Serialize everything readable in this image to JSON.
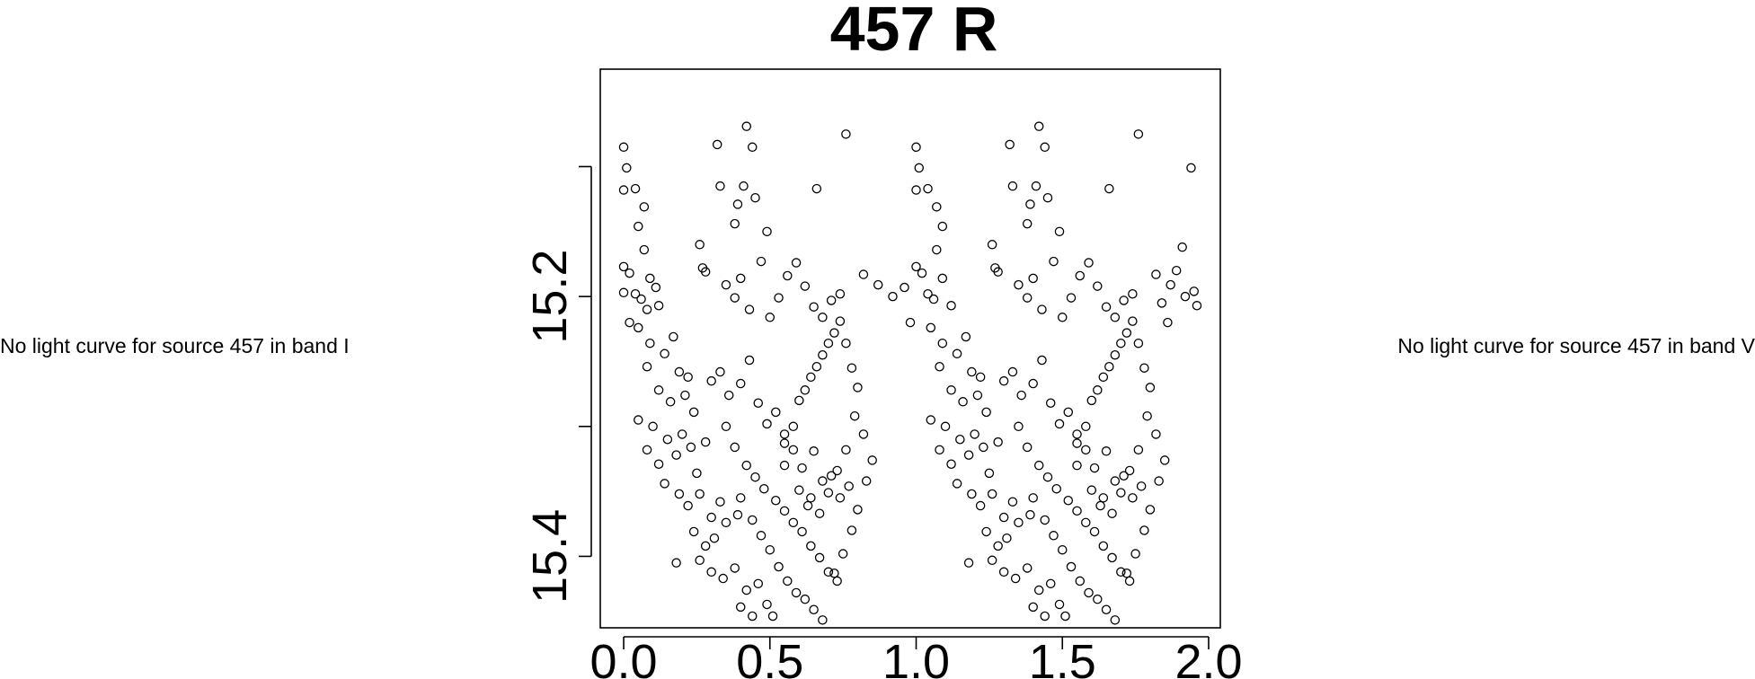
{
  "left_note": "No light curve for source 457 in band I",
  "right_note": "No light curve for source 457 in band V",
  "chart_data": {
    "type": "scatter",
    "title": "457 R",
    "xlabel": "",
    "ylabel": "",
    "xlim": [
      -0.08,
      2.04
    ],
    "ylim": [
      15.455,
      15.025
    ],
    "y_reversed": true,
    "x_ticks": [
      0.0,
      0.5,
      1.0,
      1.5,
      2.0
    ],
    "x_tick_labels": [
      "0.0",
      "0.5",
      "1.0",
      "1.5",
      "2.0"
    ],
    "y_ticks": [
      15.1,
      15.2,
      15.3,
      15.4
    ],
    "y_tick_labels": [
      "",
      "15.2",
      "",
      "15.4"
    ],
    "marker": "open-circle",
    "grid": false,
    "points": [
      [
        0.0,
        15.085
      ],
      [
        0.01,
        15.101
      ],
      [
        0.0,
        15.118
      ],
      [
        0.04,
        15.117
      ],
      [
        0.07,
        15.131
      ],
      [
        0.05,
        15.146
      ],
      [
        0.07,
        15.164
      ],
      [
        0.0,
        15.177
      ],
      [
        0.02,
        15.182
      ],
      [
        0.04,
        15.198
      ],
      [
        0.06,
        15.202
      ],
      [
        0.09,
        15.186
      ],
      [
        0.12,
        15.207
      ],
      [
        0.0,
        15.197
      ],
      [
        0.08,
        15.21
      ],
      [
        0.11,
        15.193
      ],
      [
        0.02,
        15.22
      ],
      [
        0.05,
        15.224
      ],
      [
        0.09,
        15.236
      ],
      [
        0.14,
        15.244
      ],
      [
        0.17,
        15.231
      ],
      [
        0.19,
        15.258
      ],
      [
        0.22,
        15.262
      ],
      [
        0.08,
        15.254
      ],
      [
        0.12,
        15.272
      ],
      [
        0.16,
        15.281
      ],
      [
        0.21,
        15.276
      ],
      [
        0.24,
        15.289
      ],
      [
        0.05,
        15.295
      ],
      [
        0.1,
        15.3
      ],
      [
        0.15,
        15.31
      ],
      [
        0.2,
        15.306
      ],
      [
        0.23,
        15.316
      ],
      [
        0.08,
        15.318
      ],
      [
        0.12,
        15.329
      ],
      [
        0.18,
        15.322
      ],
      [
        0.25,
        15.336
      ],
      [
        0.28,
        15.312
      ],
      [
        0.14,
        15.344
      ],
      [
        0.19,
        15.352
      ],
      [
        0.22,
        15.361
      ],
      [
        0.26,
        15.352
      ],
      [
        0.3,
        15.37
      ],
      [
        0.33,
        15.358
      ],
      [
        0.24,
        15.381
      ],
      [
        0.28,
        15.392
      ],
      [
        0.31,
        15.386
      ],
      [
        0.35,
        15.374
      ],
      [
        0.39,
        15.368
      ],
      [
        0.18,
        15.405
      ],
      [
        0.26,
        15.403
      ],
      [
        0.3,
        15.412
      ],
      [
        0.34,
        15.417
      ],
      [
        0.38,
        15.409
      ],
      [
        0.42,
        15.426
      ],
      [
        0.46,
        15.421
      ],
      [
        0.49,
        15.437
      ],
      [
        0.51,
        15.446
      ],
      [
        0.44,
        15.446
      ],
      [
        0.4,
        15.439
      ],
      [
        0.3,
        15.265
      ],
      [
        0.33,
        15.258
      ],
      [
        0.36,
        15.276
      ],
      [
        0.4,
        15.267
      ],
      [
        0.43,
        15.249
      ],
      [
        0.46,
        15.282
      ],
      [
        0.49,
        15.298
      ],
      [
        0.52,
        15.289
      ],
      [
        0.55,
        15.306
      ],
      [
        0.58,
        15.3
      ],
      [
        0.6,
        15.28
      ],
      [
        0.62,
        15.272
      ],
      [
        0.64,
        15.262
      ],
      [
        0.66,
        15.254
      ],
      [
        0.68,
        15.245
      ],
      [
        0.7,
        15.236
      ],
      [
        0.72,
        15.228
      ],
      [
        0.74,
        15.219
      ],
      [
        0.76,
        15.236
      ],
      [
        0.78,
        15.255
      ],
      [
        0.8,
        15.27
      ],
      [
        0.35,
        15.3
      ],
      [
        0.38,
        15.316
      ],
      [
        0.42,
        15.33
      ],
      [
        0.45,
        15.339
      ],
      [
        0.48,
        15.348
      ],
      [
        0.52,
        15.357
      ],
      [
        0.55,
        15.365
      ],
      [
        0.58,
        15.374
      ],
      [
        0.61,
        15.381
      ],
      [
        0.64,
        15.392
      ],
      [
        0.67,
        15.401
      ],
      [
        0.7,
        15.412
      ],
      [
        0.73,
        15.419
      ],
      [
        0.4,
        15.355
      ],
      [
        0.44,
        15.372
      ],
      [
        0.47,
        15.384
      ],
      [
        0.5,
        15.395
      ],
      [
        0.53,
        15.408
      ],
      [
        0.56,
        15.419
      ],
      [
        0.59,
        15.428
      ],
      [
        0.62,
        15.433
      ],
      [
        0.65,
        15.441
      ],
      [
        0.68,
        15.449
      ],
      [
        0.72,
        15.413
      ],
      [
        0.75,
        15.398
      ],
      [
        0.78,
        15.38
      ],
      [
        0.8,
        15.364
      ],
      [
        0.83,
        15.342
      ],
      [
        0.85,
        15.326
      ],
      [
        0.82,
        15.306
      ],
      [
        0.79,
        15.292
      ],
      [
        0.76,
        15.318
      ],
      [
        0.73,
        15.334
      ],
      [
        0.7,
        15.351
      ],
      [
        0.67,
        15.367
      ],
      [
        0.64,
        15.355
      ],
      [
        0.61,
        15.332
      ],
      [
        0.58,
        15.318
      ],
      [
        0.55,
        15.33
      ],
      [
        0.5,
        15.216
      ],
      [
        0.53,
        15.201
      ],
      [
        0.56,
        15.184
      ],
      [
        0.59,
        15.174
      ],
      [
        0.62,
        15.192
      ],
      [
        0.65,
        15.208
      ],
      [
        0.68,
        15.216
      ],
      [
        0.71,
        15.203
      ],
      [
        0.74,
        15.198
      ],
      [
        0.66,
        15.117
      ],
      [
        0.76,
        15.075
      ],
      [
        0.32,
        15.083
      ],
      [
        0.42,
        15.069
      ],
      [
        0.44,
        15.085
      ],
      [
        0.33,
        15.115
      ],
      [
        0.41,
        15.115
      ],
      [
        0.39,
        15.129
      ],
      [
        0.38,
        15.144
      ],
      [
        0.45,
        15.124
      ],
      [
        0.49,
        15.15
      ],
      [
        0.47,
        15.173
      ],
      [
        0.26,
        15.16
      ],
      [
        0.28,
        15.181
      ],
      [
        0.35,
        15.191
      ],
      [
        0.38,
        15.201
      ],
      [
        0.4,
        15.186
      ],
      [
        0.43,
        15.21
      ],
      [
        0.27,
        15.178
      ],
      [
        0.55,
        15.313
      ],
      [
        0.65,
        15.319
      ],
      [
        0.68,
        15.342
      ],
      [
        0.71,
        15.338
      ],
      [
        0.74,
        15.355
      ],
      [
        0.77,
        15.346
      ],
      [
        0.6,
        15.349
      ],
      [
        0.63,
        15.361
      ],
      [
        0.82,
        15.183
      ],
      [
        0.87,
        15.191
      ],
      [
        0.92,
        15.2
      ],
      [
        1.0,
        15.085
      ],
      [
        1.01,
        15.101
      ],
      [
        1.0,
        15.118
      ],
      [
        1.04,
        15.117
      ],
      [
        1.07,
        15.131
      ],
      [
        1.09,
        15.146
      ],
      [
        1.07,
        15.164
      ],
      [
        1.0,
        15.177
      ],
      [
        1.02,
        15.182
      ],
      [
        1.04,
        15.198
      ],
      [
        1.06,
        15.202
      ],
      [
        1.09,
        15.186
      ],
      [
        1.12,
        15.207
      ],
      [
        0.96,
        15.193
      ],
      [
        0.98,
        15.22
      ],
      [
        1.05,
        15.224
      ],
      [
        1.09,
        15.236
      ],
      [
        1.14,
        15.244
      ],
      [
        1.17,
        15.231
      ],
      [
        1.19,
        15.258
      ],
      [
        1.22,
        15.262
      ],
      [
        1.08,
        15.254
      ],
      [
        1.12,
        15.272
      ],
      [
        1.16,
        15.281
      ],
      [
        1.21,
        15.276
      ],
      [
        1.24,
        15.289
      ],
      [
        1.05,
        15.295
      ],
      [
        1.1,
        15.3
      ],
      [
        1.15,
        15.31
      ],
      [
        1.2,
        15.306
      ],
      [
        1.23,
        15.316
      ],
      [
        1.08,
        15.318
      ],
      [
        1.12,
        15.329
      ],
      [
        1.18,
        15.322
      ],
      [
        1.25,
        15.336
      ],
      [
        1.28,
        15.312
      ],
      [
        1.14,
        15.344
      ],
      [
        1.19,
        15.352
      ],
      [
        1.22,
        15.361
      ],
      [
        1.26,
        15.352
      ],
      [
        1.3,
        15.37
      ],
      [
        1.33,
        15.358
      ],
      [
        1.24,
        15.381
      ],
      [
        1.28,
        15.392
      ],
      [
        1.31,
        15.386
      ],
      [
        1.35,
        15.374
      ],
      [
        1.39,
        15.368
      ],
      [
        1.18,
        15.405
      ],
      [
        1.26,
        15.403
      ],
      [
        1.3,
        15.412
      ],
      [
        1.34,
        15.417
      ],
      [
        1.38,
        15.409
      ],
      [
        1.42,
        15.426
      ],
      [
        1.46,
        15.421
      ],
      [
        1.49,
        15.437
      ],
      [
        1.51,
        15.446
      ],
      [
        1.44,
        15.446
      ],
      [
        1.4,
        15.439
      ],
      [
        1.3,
        15.265
      ],
      [
        1.33,
        15.258
      ],
      [
        1.36,
        15.276
      ],
      [
        1.4,
        15.267
      ],
      [
        1.43,
        15.249
      ],
      [
        1.46,
        15.282
      ],
      [
        1.49,
        15.298
      ],
      [
        1.52,
        15.289
      ],
      [
        1.55,
        15.306
      ],
      [
        1.58,
        15.3
      ],
      [
        1.6,
        15.28
      ],
      [
        1.62,
        15.272
      ],
      [
        1.64,
        15.262
      ],
      [
        1.66,
        15.254
      ],
      [
        1.68,
        15.245
      ],
      [
        1.7,
        15.236
      ],
      [
        1.72,
        15.228
      ],
      [
        1.74,
        15.219
      ],
      [
        1.76,
        15.236
      ],
      [
        1.78,
        15.255
      ],
      [
        1.8,
        15.27
      ],
      [
        1.35,
        15.3
      ],
      [
        1.38,
        15.316
      ],
      [
        1.42,
        15.33
      ],
      [
        1.45,
        15.339
      ],
      [
        1.48,
        15.348
      ],
      [
        1.52,
        15.357
      ],
      [
        1.55,
        15.365
      ],
      [
        1.58,
        15.374
      ],
      [
        1.61,
        15.381
      ],
      [
        1.64,
        15.392
      ],
      [
        1.67,
        15.401
      ],
      [
        1.7,
        15.412
      ],
      [
        1.73,
        15.419
      ],
      [
        1.4,
        15.355
      ],
      [
        1.44,
        15.372
      ],
      [
        1.47,
        15.384
      ],
      [
        1.5,
        15.395
      ],
      [
        1.53,
        15.408
      ],
      [
        1.56,
        15.419
      ],
      [
        1.59,
        15.428
      ],
      [
        1.62,
        15.433
      ],
      [
        1.65,
        15.441
      ],
      [
        1.68,
        15.449
      ],
      [
        1.72,
        15.413
      ],
      [
        1.75,
        15.398
      ],
      [
        1.78,
        15.38
      ],
      [
        1.8,
        15.364
      ],
      [
        1.83,
        15.342
      ],
      [
        1.85,
        15.326
      ],
      [
        1.82,
        15.306
      ],
      [
        1.79,
        15.292
      ],
      [
        1.76,
        15.318
      ],
      [
        1.73,
        15.334
      ],
      [
        1.7,
        15.351
      ],
      [
        1.67,
        15.367
      ],
      [
        1.64,
        15.355
      ],
      [
        1.61,
        15.332
      ],
      [
        1.58,
        15.318
      ],
      [
        1.55,
        15.33
      ],
      [
        1.5,
        15.216
      ],
      [
        1.53,
        15.201
      ],
      [
        1.56,
        15.184
      ],
      [
        1.59,
        15.174
      ],
      [
        1.62,
        15.192
      ],
      [
        1.65,
        15.208
      ],
      [
        1.68,
        15.216
      ],
      [
        1.71,
        15.203
      ],
      [
        1.74,
        15.198
      ],
      [
        1.66,
        15.117
      ],
      [
        1.76,
        15.075
      ],
      [
        1.32,
        15.083
      ],
      [
        1.42,
        15.069
      ],
      [
        1.44,
        15.085
      ],
      [
        1.33,
        15.115
      ],
      [
        1.41,
        15.115
      ],
      [
        1.39,
        15.129
      ],
      [
        1.38,
        15.144
      ],
      [
        1.45,
        15.124
      ],
      [
        1.49,
        15.15
      ],
      [
        1.47,
        15.173
      ],
      [
        1.26,
        15.16
      ],
      [
        1.28,
        15.181
      ],
      [
        1.35,
        15.191
      ],
      [
        1.38,
        15.201
      ],
      [
        1.4,
        15.186
      ],
      [
        1.43,
        15.21
      ],
      [
        1.27,
        15.178
      ],
      [
        1.55,
        15.313
      ],
      [
        1.65,
        15.319
      ],
      [
        1.68,
        15.342
      ],
      [
        1.71,
        15.338
      ],
      [
        1.74,
        15.355
      ],
      [
        1.77,
        15.346
      ],
      [
        1.6,
        15.349
      ],
      [
        1.63,
        15.361
      ],
      [
        1.82,
        15.183
      ],
      [
        1.87,
        15.191
      ],
      [
        1.92,
        15.2
      ],
      [
        1.94,
        15.101
      ],
      [
        1.95,
        15.196
      ],
      [
        1.96,
        15.207
      ],
      [
        1.89,
        15.18
      ],
      [
        1.84,
        15.205
      ],
      [
        1.91,
        15.162
      ],
      [
        1.86,
        15.22
      ]
    ]
  }
}
